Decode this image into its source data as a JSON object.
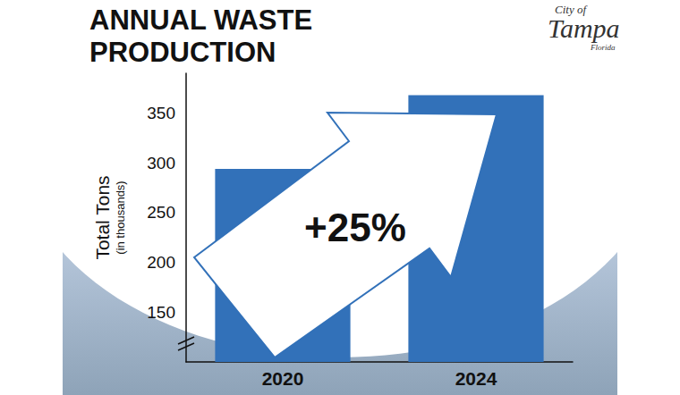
{
  "chart_data": {
    "type": "bar",
    "title": "ANNUAL WASTE PRODUCTION",
    "y_label": "Total Tons",
    "y_label_note": "(in thousands)",
    "categories": [
      "2020",
      "2024"
    ],
    "values": [
      294,
      368
    ],
    "color": "#3271b9",
    "ylim": [
      100,
      390
    ],
    "yticks": [
      150,
      200,
      250,
      300,
      350
    ],
    "grid": false,
    "annotation": "+25%",
    "logo": [
      "City of",
      "Tampa",
      "Florida"
    ]
  }
}
